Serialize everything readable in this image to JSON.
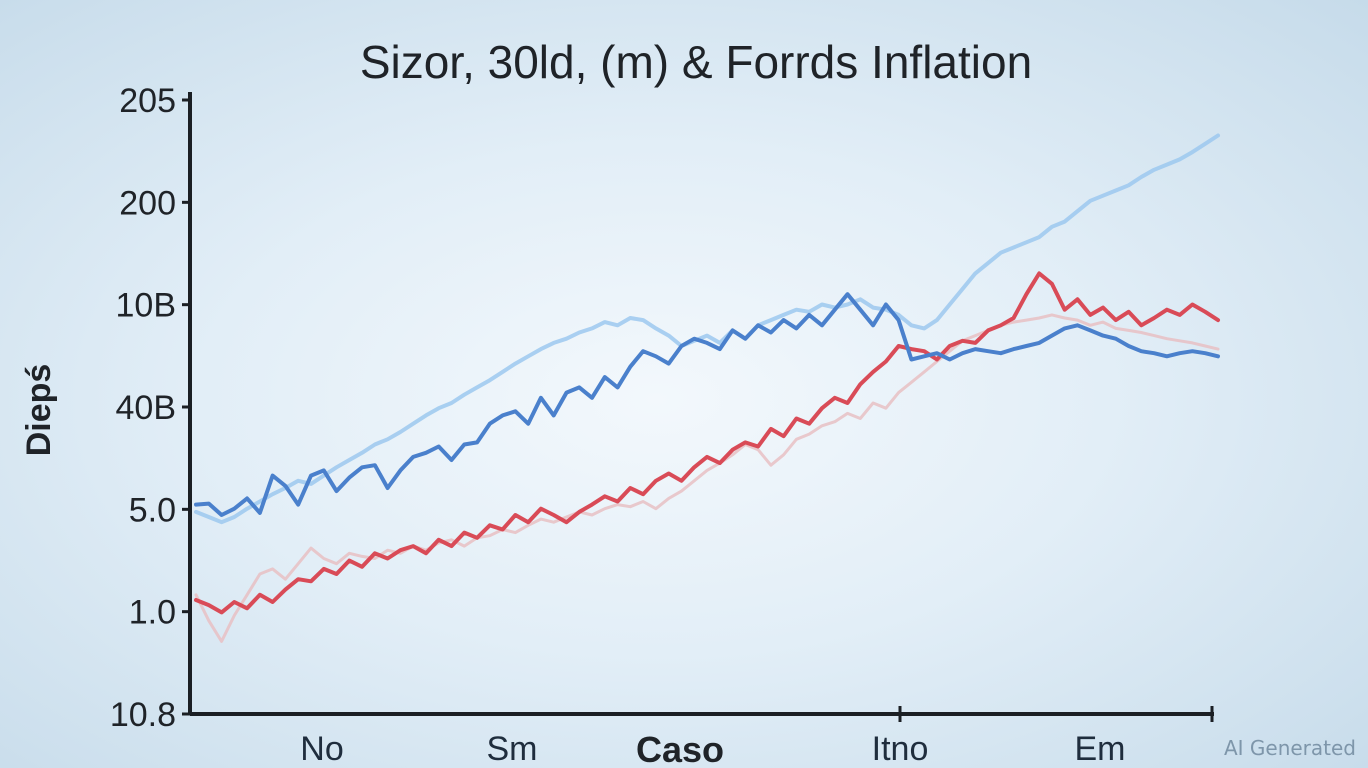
{
  "chart_data": {
    "type": "line",
    "title": "Sizor, 30ld, (m) & Forrds Inflation",
    "xlabel": "Caso",
    "ylabel": "Diepś",
    "y_ticks": [
      "205",
      "200",
      "10B",
      "40B",
      "5.0",
      "1.0",
      "10.8"
    ],
    "x_ticks": [
      "No",
      "Sm",
      "Itno",
      "Em"
    ],
    "x": [
      0,
      1,
      2,
      3,
      4,
      5,
      6,
      7,
      8,
      9,
      10,
      11,
      12,
      13,
      14,
      15,
      16,
      17,
      18,
      19,
      20,
      21,
      22,
      23,
      24,
      25,
      26,
      27,
      28,
      29,
      30,
      31,
      32,
      33,
      34,
      35,
      36,
      37,
      38,
      39,
      40,
      41,
      42,
      43,
      44,
      45,
      46,
      47,
      48,
      49,
      50,
      51,
      52,
      53,
      54,
      55,
      56,
      57,
      58,
      59,
      60,
      61,
      62,
      63,
      64,
      65,
      66,
      67,
      68,
      69,
      70,
      71,
      72,
      73,
      74,
      75,
      76,
      77,
      78,
      79,
      80
    ],
    "ylim": [
      0,
      6
    ],
    "series": [
      {
        "color": "#4a80cc",
        "values": [
          2.02,
          2.03,
          1.92,
          1.98,
          2.08,
          1.94,
          2.3,
          2.2,
          2.02,
          2.3,
          2.35,
          2.15,
          2.28,
          2.38,
          2.4,
          2.18,
          2.35,
          2.48,
          2.52,
          2.58,
          2.45,
          2.6,
          2.62,
          2.8,
          2.88,
          2.92,
          2.8,
          3.05,
          2.88,
          3.1,
          3.15,
          3.05,
          3.25,
          3.15,
          3.35,
          3.5,
          3.45,
          3.38,
          3.55,
          3.62,
          3.58,
          3.52,
          3.7,
          3.62,
          3.75,
          3.68,
          3.8,
          3.72,
          3.85,
          3.75,
          3.9,
          4.05,
          3.9,
          3.75,
          3.95,
          3.8,
          3.42,
          3.45,
          3.48,
          3.42,
          3.48,
          3.52,
          3.5,
          3.48,
          3.52,
          3.55,
          3.58,
          3.65,
          3.72,
          3.75,
          3.7,
          3.65,
          3.62,
          3.55,
          3.5,
          3.48,
          3.45,
          3.48,
          3.5,
          3.48,
          3.45
        ]
      },
      {
        "color": "#9cc8ef",
        "values": [
          1.95,
          1.9,
          1.85,
          1.9,
          1.98,
          2.05,
          2.12,
          2.18,
          2.25,
          2.22,
          2.3,
          2.38,
          2.45,
          2.52,
          2.6,
          2.65,
          2.72,
          2.8,
          2.88,
          2.95,
          3.0,
          3.08,
          3.15,
          3.22,
          3.3,
          3.38,
          3.45,
          3.52,
          3.58,
          3.62,
          3.68,
          3.72,
          3.78,
          3.75,
          3.82,
          3.8,
          3.72,
          3.65,
          3.55,
          3.6,
          3.65,
          3.58,
          3.7,
          3.62,
          3.75,
          3.8,
          3.85,
          3.9,
          3.88,
          3.95,
          3.92,
          3.95,
          4.0,
          3.92,
          3.9,
          3.85,
          3.75,
          3.72,
          3.8,
          3.95,
          4.1,
          4.25,
          4.35,
          4.45,
          4.5,
          4.55,
          4.6,
          4.7,
          4.75,
          4.85,
          4.95,
          5.0,
          5.05,
          5.1,
          5.18,
          5.25,
          5.3,
          5.35,
          5.42,
          5.5,
          5.58
        ]
      },
      {
        "color": "#d94b57",
        "values": [
          1.1,
          1.05,
          0.98,
          1.08,
          1.02,
          1.15,
          1.08,
          1.2,
          1.3,
          1.28,
          1.4,
          1.35,
          1.48,
          1.42,
          1.55,
          1.5,
          1.58,
          1.62,
          1.55,
          1.68,
          1.62,
          1.75,
          1.7,
          1.82,
          1.78,
          1.92,
          1.85,
          1.98,
          1.92,
          1.85,
          1.95,
          2.02,
          2.1,
          2.05,
          2.18,
          2.12,
          2.25,
          2.32,
          2.25,
          2.38,
          2.48,
          2.42,
          2.55,
          2.62,
          2.58,
          2.75,
          2.68,
          2.85,
          2.8,
          2.95,
          3.05,
          3.0,
          3.18,
          3.3,
          3.4,
          3.55,
          3.52,
          3.5,
          3.42,
          3.55,
          3.6,
          3.58,
          3.7,
          3.75,
          3.82,
          4.05,
          4.25,
          4.15,
          3.9,
          4.0,
          3.85,
          3.92,
          3.8,
          3.88,
          3.75,
          3.82,
          3.9,
          3.85,
          3.95,
          3.88,
          3.8
        ]
      },
      {
        "color": "#e8bfc3",
        "values": [
          1.15,
          0.9,
          0.7,
          0.95,
          1.15,
          1.35,
          1.4,
          1.3,
          1.45,
          1.6,
          1.5,
          1.45,
          1.55,
          1.52,
          1.5,
          1.58,
          1.55,
          1.62,
          1.58,
          1.65,
          1.68,
          1.62,
          1.7,
          1.72,
          1.78,
          1.75,
          1.82,
          1.88,
          1.85,
          1.9,
          1.95,
          1.92,
          1.98,
          2.02,
          2.0,
          2.05,
          1.98,
          2.08,
          2.15,
          2.25,
          2.35,
          2.42,
          2.5,
          2.6,
          2.55,
          2.4,
          2.5,
          2.65,
          2.7,
          2.78,
          2.82,
          2.9,
          2.85,
          3.0,
          2.95,
          3.1,
          3.2,
          3.3,
          3.4,
          3.5,
          3.6,
          3.65,
          3.7,
          3.75,
          3.78,
          3.8,
          3.82,
          3.85,
          3.82,
          3.8,
          3.75,
          3.78,
          3.72,
          3.7,
          3.68,
          3.65,
          3.62,
          3.6,
          3.58,
          3.55,
          3.52
        ]
      }
    ]
  },
  "watermark": "AI Generated"
}
